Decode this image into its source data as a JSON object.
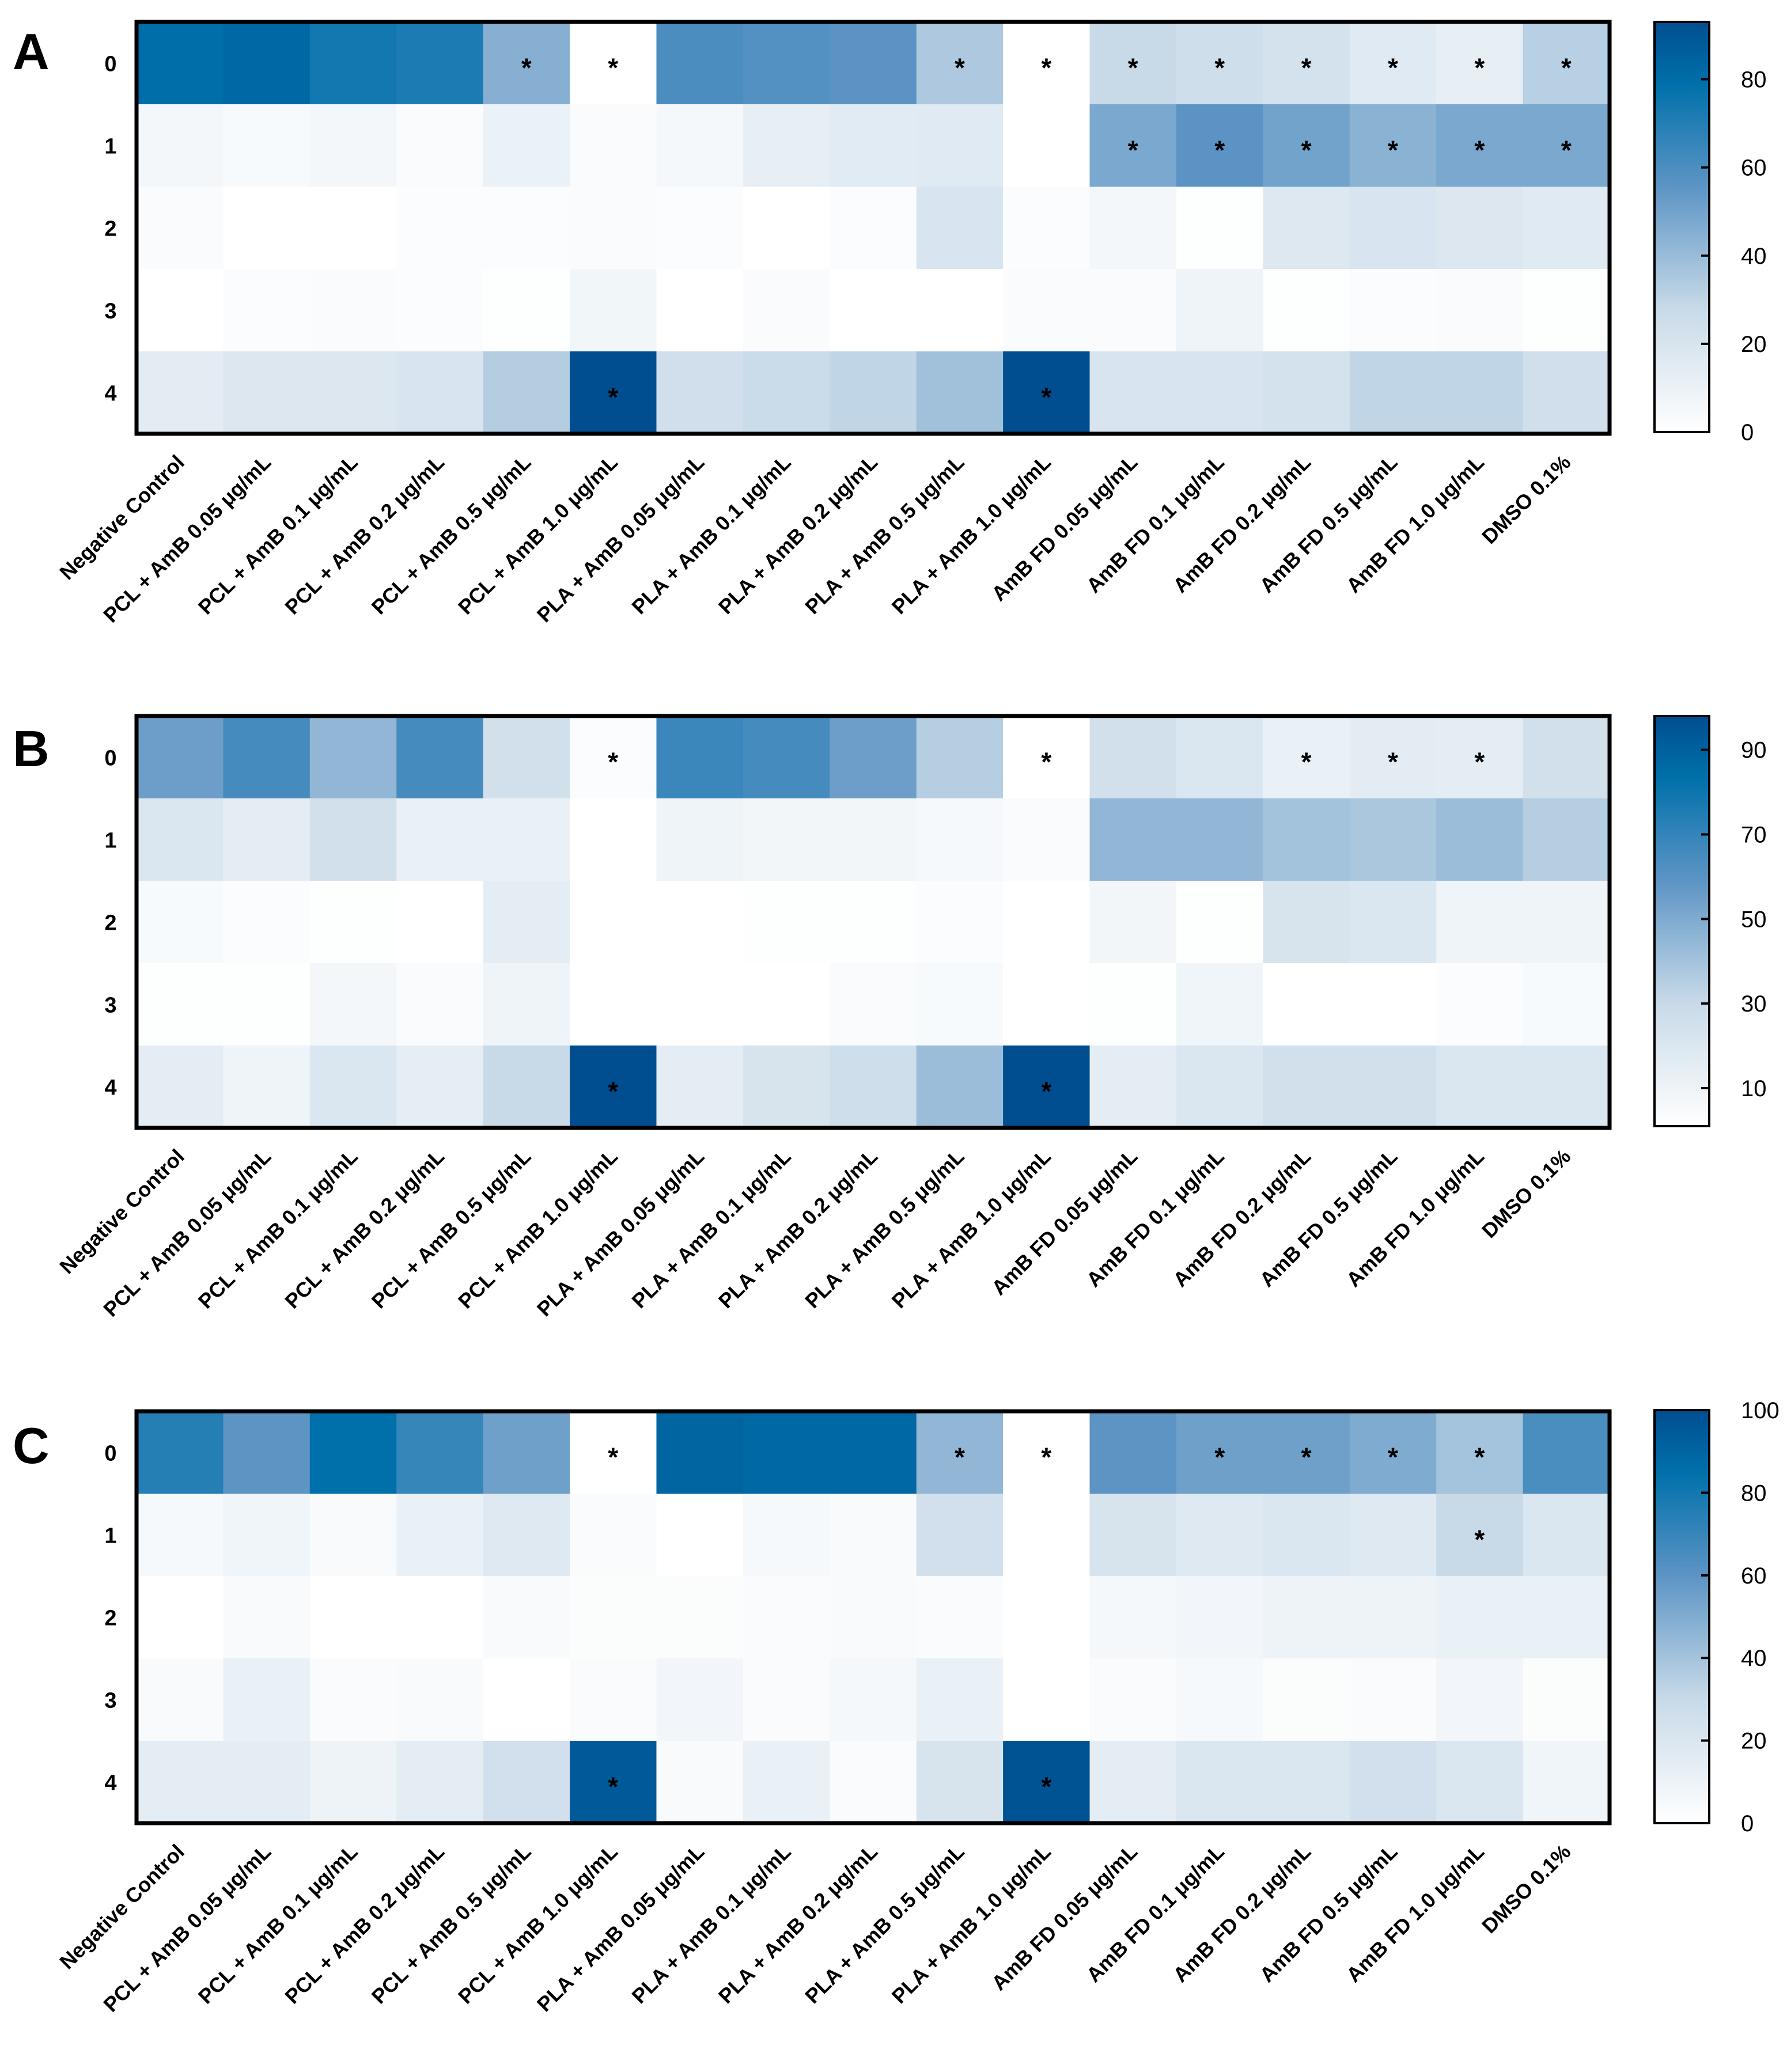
{
  "chart_data": [
    {
      "type": "heatmap",
      "panel": "A",
      "rows": [
        "0",
        "1",
        "2",
        "3",
        "4"
      ],
      "columns": [
        "Negative Control",
        "PCL + AmB 0.05 μg/mL",
        "PCL + AmB 0.1 μg/mL",
        "PCL + AmB 0.2 μg/mL",
        "PCL + AmB 0.5 μg/mL",
        "PCL + AmB 1.0 μg/mL",
        "PLA + AmB 0.05 μg/mL",
        "PLA + AmB 0.1 μg/mL",
        "PLA + AmB 0.2 μg/mL",
        "PLA + AmB 0.5 μg/mL",
        "PLA + AmB 1.0 μg/mL",
        "AmB FD 0.05 μg/mL",
        "AmB FD 0.1 μg/mL",
        "AmB FD 0.2 μg/mL",
        "AmB FD 0.5 μg/mL",
        "AmB FD 1.0 μg/mL",
        "DMSO 0.1%"
      ],
      "values": [
        [
          80,
          82,
          74,
          72,
          45,
          0,
          60,
          58,
          56,
          35,
          0,
          28,
          25,
          22,
          16,
          12,
          32
        ],
        [
          6,
          4,
          6,
          3,
          10,
          3,
          5,
          12,
          15,
          16,
          0,
          48,
          56,
          50,
          44,
          48,
          48
        ],
        [
          3,
          0,
          0,
          2,
          2,
          3,
          2,
          0,
          2,
          20,
          2,
          6,
          1,
          17,
          20,
          18,
          16
        ],
        [
          0,
          2,
          3,
          2,
          1,
          7,
          0,
          3,
          0,
          0,
          3,
          3,
          8,
          1,
          2,
          3,
          1
        ],
        [
          14,
          18,
          18,
          20,
          33,
          93,
          24,
          27,
          30,
          38,
          93,
          20,
          20,
          22,
          30,
          30,
          24
        ]
      ],
      "significant": [
        [
          0,
          4
        ],
        [
          0,
          5
        ],
        [
          0,
          9
        ],
        [
          0,
          10
        ],
        [
          0,
          11
        ],
        [
          0,
          12
        ],
        [
          0,
          13
        ],
        [
          0,
          14
        ],
        [
          0,
          15
        ],
        [
          0,
          16
        ],
        [
          1,
          11
        ],
        [
          1,
          12
        ],
        [
          1,
          13
        ],
        [
          1,
          14
        ],
        [
          1,
          15
        ],
        [
          1,
          16
        ],
        [
          4,
          5
        ],
        [
          4,
          10
        ]
      ],
      "significance_mark": "*",
      "colorbar": {
        "range": [
          0,
          93
        ],
        "ticks": [
          "0",
          "20",
          "40",
          "60",
          "80"
        ],
        "tick_values": [
          0,
          20,
          40,
          60,
          80
        ]
      }
    },
    {
      "type": "heatmap",
      "panel": "B",
      "rows": [
        "0",
        "1",
        "2",
        "3",
        "4"
      ],
      "columns": [
        "Negative Control",
        "PCL + AmB 0.05 μg/mL",
        "PCL + AmB 0.1 μg/mL",
        "PCL + AmB 0.2 μg/mL",
        "PCL + AmB 0.5 μg/mL",
        "PCL + AmB 1.0 μg/mL",
        "PLA + AmB 0.05 μg/mL",
        "PLA + AmB 0.1 μg/mL",
        "PLA + AmB 0.2 μg/mL",
        "PLA + AmB 0.5 μg/mL",
        "PLA + AmB 1.0 μg/mL",
        "AmB FD 0.05 μg/mL",
        "AmB FD 0.1 μg/mL",
        "AmB FD 0.2 μg/mL",
        "AmB FD 0.5 μg/mL",
        "AmB FD 1.0 μg/mL",
        "DMSO 0.1%"
      ],
      "values": [
        [
          55,
          65,
          45,
          65,
          25,
          3,
          68,
          65,
          55,
          35,
          0,
          25,
          20,
          12,
          16,
          15,
          25
        ],
        [
          20,
          15,
          25,
          12,
          12,
          0,
          10,
          8,
          8,
          6,
          4,
          45,
          45,
          40,
          38,
          42,
          35
        ],
        [
          5,
          3,
          2,
          0,
          15,
          0,
          0,
          2,
          2,
          3,
          0,
          8,
          2,
          22,
          20,
          10,
          10
        ],
        [
          2,
          2,
          7,
          4,
          10,
          0,
          0,
          0,
          4,
          5,
          0,
          2,
          9,
          1,
          1,
          3,
          5
        ],
        [
          15,
          10,
          20,
          14,
          30,
          98,
          15,
          22,
          27,
          42,
          98,
          15,
          20,
          25,
          25,
          20,
          20
        ]
      ],
      "significant": [
        [
          0,
          5
        ],
        [
          0,
          10
        ],
        [
          0,
          13
        ],
        [
          0,
          14
        ],
        [
          0,
          15
        ],
        [
          4,
          5
        ],
        [
          4,
          10
        ]
      ],
      "significance_mark": "*",
      "colorbar": {
        "range": [
          1,
          98
        ],
        "ticks": [
          "10",
          "30",
          "50",
          "70",
          "90"
        ],
        "tick_values": [
          10,
          30,
          50,
          70,
          90
        ]
      }
    },
    {
      "type": "heatmap",
      "panel": "C",
      "rows": [
        "0",
        "1",
        "2",
        "3",
        "4"
      ],
      "columns": [
        "Negative Control",
        "PCL + AmB 0.05 μg/mL",
        "PCL + AmB 0.1 μg/mL",
        "PCL + AmB 0.2 μg/mL",
        "PCL + AmB 0.5 μg/mL",
        "PCL + AmB 1.0 μg/mL",
        "PLA + AmB 0.05 μg/mL",
        "PLA + AmB 0.1 μg/mL",
        "PLA + AmB 0.2 μg/mL",
        "PLA + AmB 0.5 μg/mL",
        "PLA + AmB 1.0 μg/mL",
        "AmB FD 0.05 μg/mL",
        "AmB FD 0.1 μg/mL",
        "AmB FD 0.2 μg/mL",
        "AmB FD 0.5 μg/mL",
        "AmB FD 1.0 μg/mL",
        "DMSO 0.1%"
      ],
      "values": [
        [
          75,
          60,
          85,
          70,
          55,
          0,
          90,
          88,
          88,
          45,
          0,
          60,
          55,
          55,
          50,
          40,
          65
        ],
        [
          5,
          8,
          4,
          12,
          18,
          3,
          0,
          5,
          4,
          25,
          0,
          22,
          18,
          20,
          18,
          30,
          20
        ],
        [
          0,
          4,
          0,
          0,
          4,
          2,
          2,
          3,
          4,
          3,
          0,
          6,
          7,
          10,
          10,
          12,
          12
        ],
        [
          4,
          12,
          3,
          4,
          0,
          3,
          7,
          3,
          6,
          12,
          0,
          3,
          5,
          2,
          3,
          7,
          2
        ],
        [
          15,
          15,
          10,
          15,
          25,
          95,
          4,
          12,
          3,
          22,
          98,
          15,
          20,
          20,
          25,
          20,
          8
        ]
      ],
      "significant": [
        [
          0,
          5
        ],
        [
          0,
          9
        ],
        [
          0,
          10
        ],
        [
          0,
          12
        ],
        [
          0,
          13
        ],
        [
          0,
          14
        ],
        [
          0,
          15
        ],
        [
          1,
          15
        ],
        [
          4,
          5
        ],
        [
          4,
          10
        ]
      ],
      "significance_mark": "*",
      "colorbar": {
        "range": [
          0,
          100
        ],
        "ticks": [
          "0",
          "20",
          "40",
          "60",
          "80",
          "100"
        ],
        "tick_values": [
          0,
          20,
          40,
          60,
          80,
          100
        ]
      }
    }
  ]
}
